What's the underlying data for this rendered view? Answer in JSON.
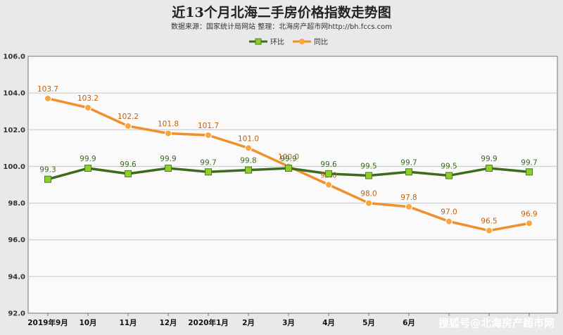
{
  "chart_data": {
    "type": "line",
    "title": "近13个月北海二手房价格指数走势图",
    "subtitle": "数据来源：国家统计局网站    整理：北海房产超市网http://bh.fccs.com",
    "categories": [
      "2019年9月",
      "10月",
      "11月",
      "12月",
      "2020年1月",
      "2月",
      "3月",
      "4月",
      "5月",
      "6月",
      "",
      "",
      ""
    ],
    "ylim": [
      92.0,
      106.0
    ],
    "y_ticks": [
      "92.0",
      "94.0",
      "96.0",
      "98.0",
      "100.0",
      "102.0",
      "104.0",
      "106.0"
    ],
    "grid": true,
    "legend_position": "top-right",
    "series": [
      {
        "name": "环比",
        "color": "#3d6b1e",
        "marker_color": "#8ccf2a",
        "values": [
          99.3,
          99.9,
          99.6,
          99.9,
          99.7,
          99.8,
          99.9,
          99.6,
          99.5,
          99.7,
          99.5,
          99.9,
          99.7
        ],
        "labels": [
          "99.3",
          "99.9",
          "99.6",
          "99.9",
          "99.7",
          "99.8",
          "99.9",
          "99.6",
          "99.5",
          "99.7",
          "99.5",
          "99.9",
          "99.7"
        ]
      },
      {
        "name": "同比",
        "color": "#f0902a",
        "marker_color": "#f7a640",
        "values": [
          103.7,
          103.2,
          102.2,
          101.8,
          101.7,
          101.0,
          100.0,
          99.0,
          98.0,
          97.8,
          97.0,
          96.5,
          96.9
        ],
        "labels": [
          "103.7",
          "103.2",
          "102.2",
          "101.8",
          "101.7",
          "101.0",
          "100.0",
          "99.0",
          "98.0",
          "97.8",
          "97.0",
          "96.5",
          "96.9"
        ]
      }
    ]
  },
  "watermark": "搜狐号@北海房产超市网"
}
